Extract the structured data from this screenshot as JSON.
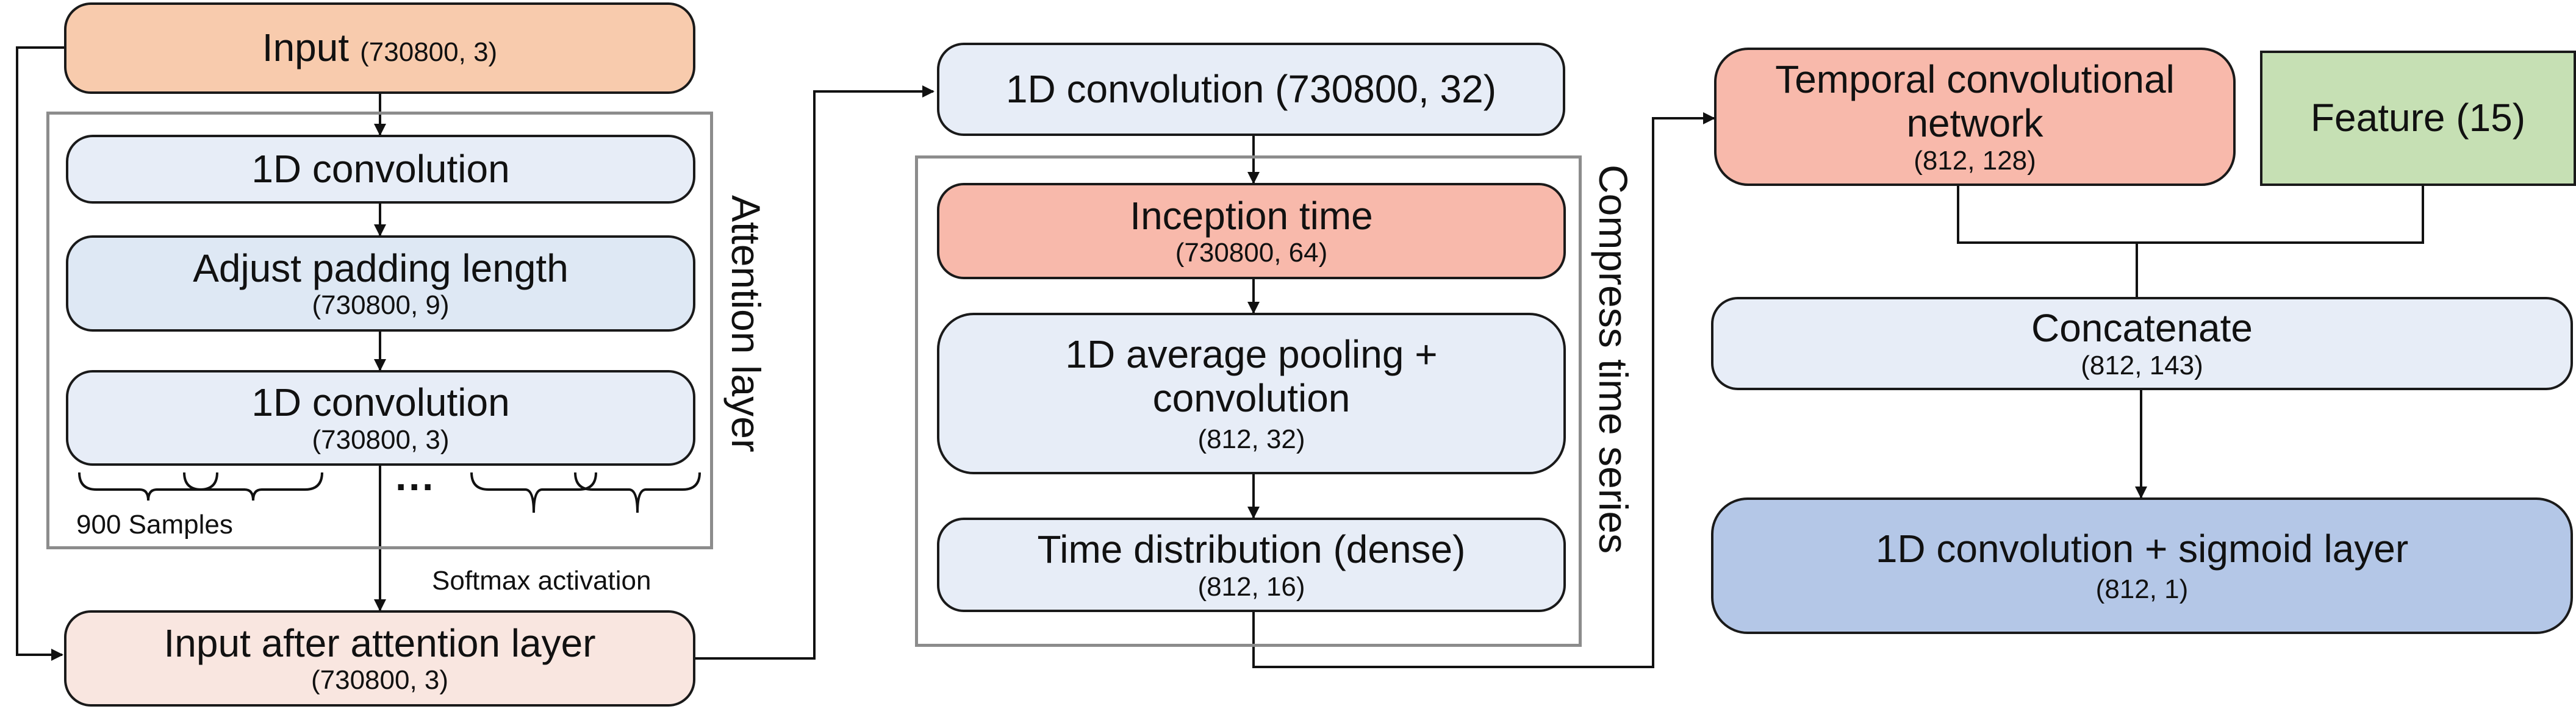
{
  "col1": {
    "input": {
      "title": "Input",
      "shape": "(730800, 3)"
    },
    "attention": {
      "conv1": {
        "title": "1D convolution"
      },
      "padding": {
        "title": "Adjust padding length",
        "shape": "(730800, 9)"
      },
      "conv2": {
        "title": "1D convolution",
        "shape": "(730800, 3)"
      },
      "ellipsis": "···",
      "samples_label": "900 Samples",
      "group_label": "Attention layer"
    },
    "softmax_label": "Softmax activation",
    "after_attention": {
      "title": "Input after attention layer",
      "shape": "(730800, 3)"
    }
  },
  "col2": {
    "conv": {
      "title": "1D convolution (730800, 32)"
    },
    "compress": {
      "inception": {
        "title": "Inception time",
        "shape": "(730800, 64)"
      },
      "avgpool": {
        "title_line1": "1D average pooling +",
        "title_line2": "convolution",
        "shape": "(812, 32)"
      },
      "timedist": {
        "title": "Time distribution (dense)",
        "shape": "(812, 16)"
      },
      "group_label": "Compress time series"
    }
  },
  "col3": {
    "tcn": {
      "title_line1": "Temporal convolutional",
      "title_line2": "network",
      "shape": "(812, 128)"
    },
    "feature": {
      "title": "Feature (15)"
    },
    "concat": {
      "title": "Concatenate",
      "shape": "(812, 143)"
    },
    "output": {
      "title": "1D convolution + sigmoid layer",
      "shape": "(812, 1)"
    }
  },
  "colors": {
    "input": "#f8cbad",
    "light_blue": "#e7edf7",
    "mid_blue": "#dee8f4",
    "salmon": "#f8b9ab",
    "green": "#c6e0b4",
    "after_attention": "#f9e6e0",
    "output": "#b4c7e7",
    "group_border": "#8c8c8c"
  }
}
